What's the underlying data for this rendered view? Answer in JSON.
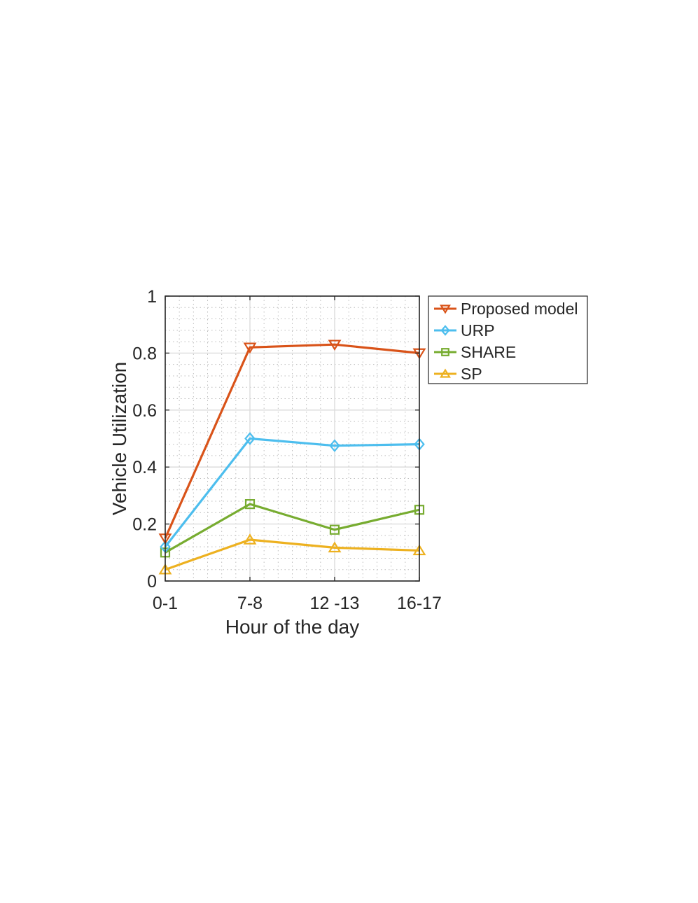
{
  "chart_data": {
    "type": "line",
    "categories": [
      "0-1",
      "7-8",
      "12 -13",
      "16-17"
    ],
    "xlabel": "Hour of the day",
    "ylabel": "Vehicle Utilization",
    "ylim": [
      0,
      1
    ],
    "yticks": [
      "0",
      "0.2",
      "0.4",
      "0.6",
      "0.8",
      "1"
    ],
    "grid": true,
    "minor_grid": true,
    "legend_position": "outside-top-right",
    "series": [
      {
        "name": "Proposed model",
        "values": [
          0.15,
          0.82,
          0.83,
          0.8
        ],
        "color": "#d95319",
        "marker": "triangle-down"
      },
      {
        "name": "URP",
        "values": [
          0.12,
          0.5,
          0.475,
          0.48
        ],
        "color": "#4dbeee",
        "marker": "diamond"
      },
      {
        "name": "SHARE",
        "values": [
          0.1,
          0.27,
          0.18,
          0.25
        ],
        "color": "#77ac30",
        "marker": "square"
      },
      {
        "name": "SP",
        "values": [
          0.04,
          0.145,
          0.117,
          0.107
        ],
        "color": "#edb120",
        "marker": "triangle-up"
      }
    ]
  }
}
